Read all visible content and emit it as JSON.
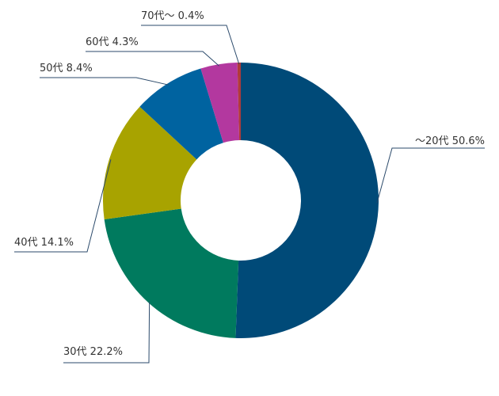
{
  "chart_data": {
    "type": "pie",
    "donut": true,
    "categories": [
      "～20代",
      "30代",
      "40代",
      "50代",
      "60代",
      "70代～"
    ],
    "values": [
      50.6,
      22.2,
      14.1,
      8.4,
      4.3,
      0.4
    ],
    "labels": [
      "～20代 50.6%",
      "30代 22.2%",
      "40代 14.1%",
      "50代 8.4%",
      "60代 4.3%",
      "70代～ 0.4%"
    ],
    "colors": [
      "#004a78",
      "#007a5e",
      "#a8a300",
      "#0063a0",
      "#b3389f",
      "#b03a3a"
    ],
    "legend": "none",
    "title": ""
  }
}
